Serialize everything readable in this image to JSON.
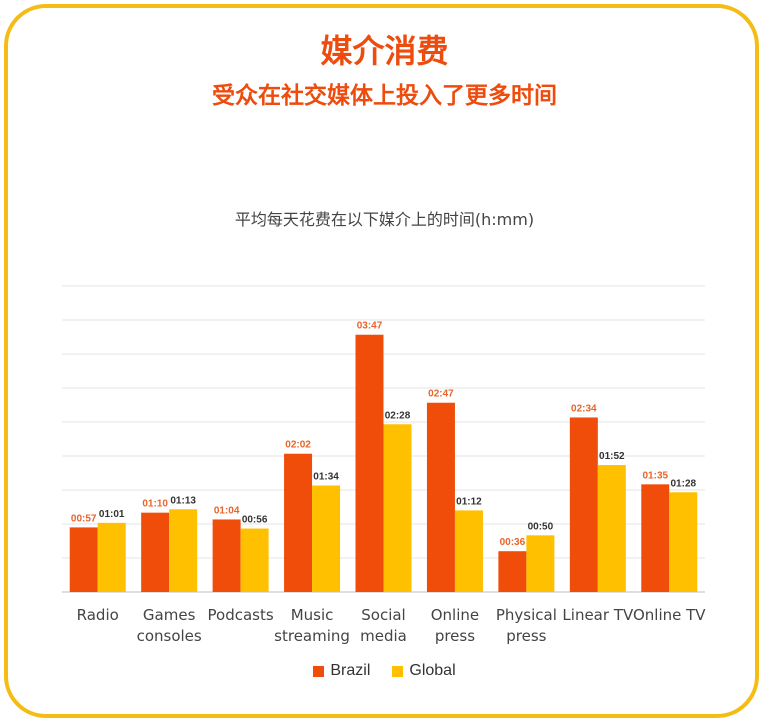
{
  "header": {
    "title": "媒介消费",
    "subtitle": "受众在社交媒体上投入了更多时间"
  },
  "chart_data": {
    "type": "bar",
    "title": "平均每天花费在以下媒介上的时间(h:mm)",
    "categories": [
      [
        "Radio"
      ],
      [
        "Games",
        "consoles"
      ],
      [
        "Podcasts"
      ],
      [
        "Music",
        "streaming"
      ],
      [
        "Social",
        "media"
      ],
      [
        "Online",
        "press"
      ],
      [
        "Physical",
        "press"
      ],
      [
        "Linear TV"
      ],
      [
        "Online TV"
      ]
    ],
    "series": [
      {
        "name": "Brazil",
        "color": "#F04D0A",
        "label_color": "#E8642A",
        "values": [
          57,
          70,
          64,
          122,
          227,
          167,
          36,
          154,
          95
        ],
        "labels": [
          "00:57",
          "01:10",
          "01:04",
          "02:02",
          "03:47",
          "02:47",
          "00:36",
          "02:34",
          "01:35"
        ]
      },
      {
        "name": "Global",
        "color": "#FFC000",
        "label_color": "#333333",
        "values": [
          61,
          73,
          56,
          94,
          148,
          72,
          50,
          112,
          88
        ],
        "labels": [
          "01:01",
          "01:13",
          "00:56",
          "01:34",
          "02:28",
          "01:12",
          "00:50",
          "01:52",
          "01:28"
        ]
      }
    ],
    "ylim": [
      0,
      270
    ],
    "gridlines": 9,
    "legend_position": "bottom"
  }
}
